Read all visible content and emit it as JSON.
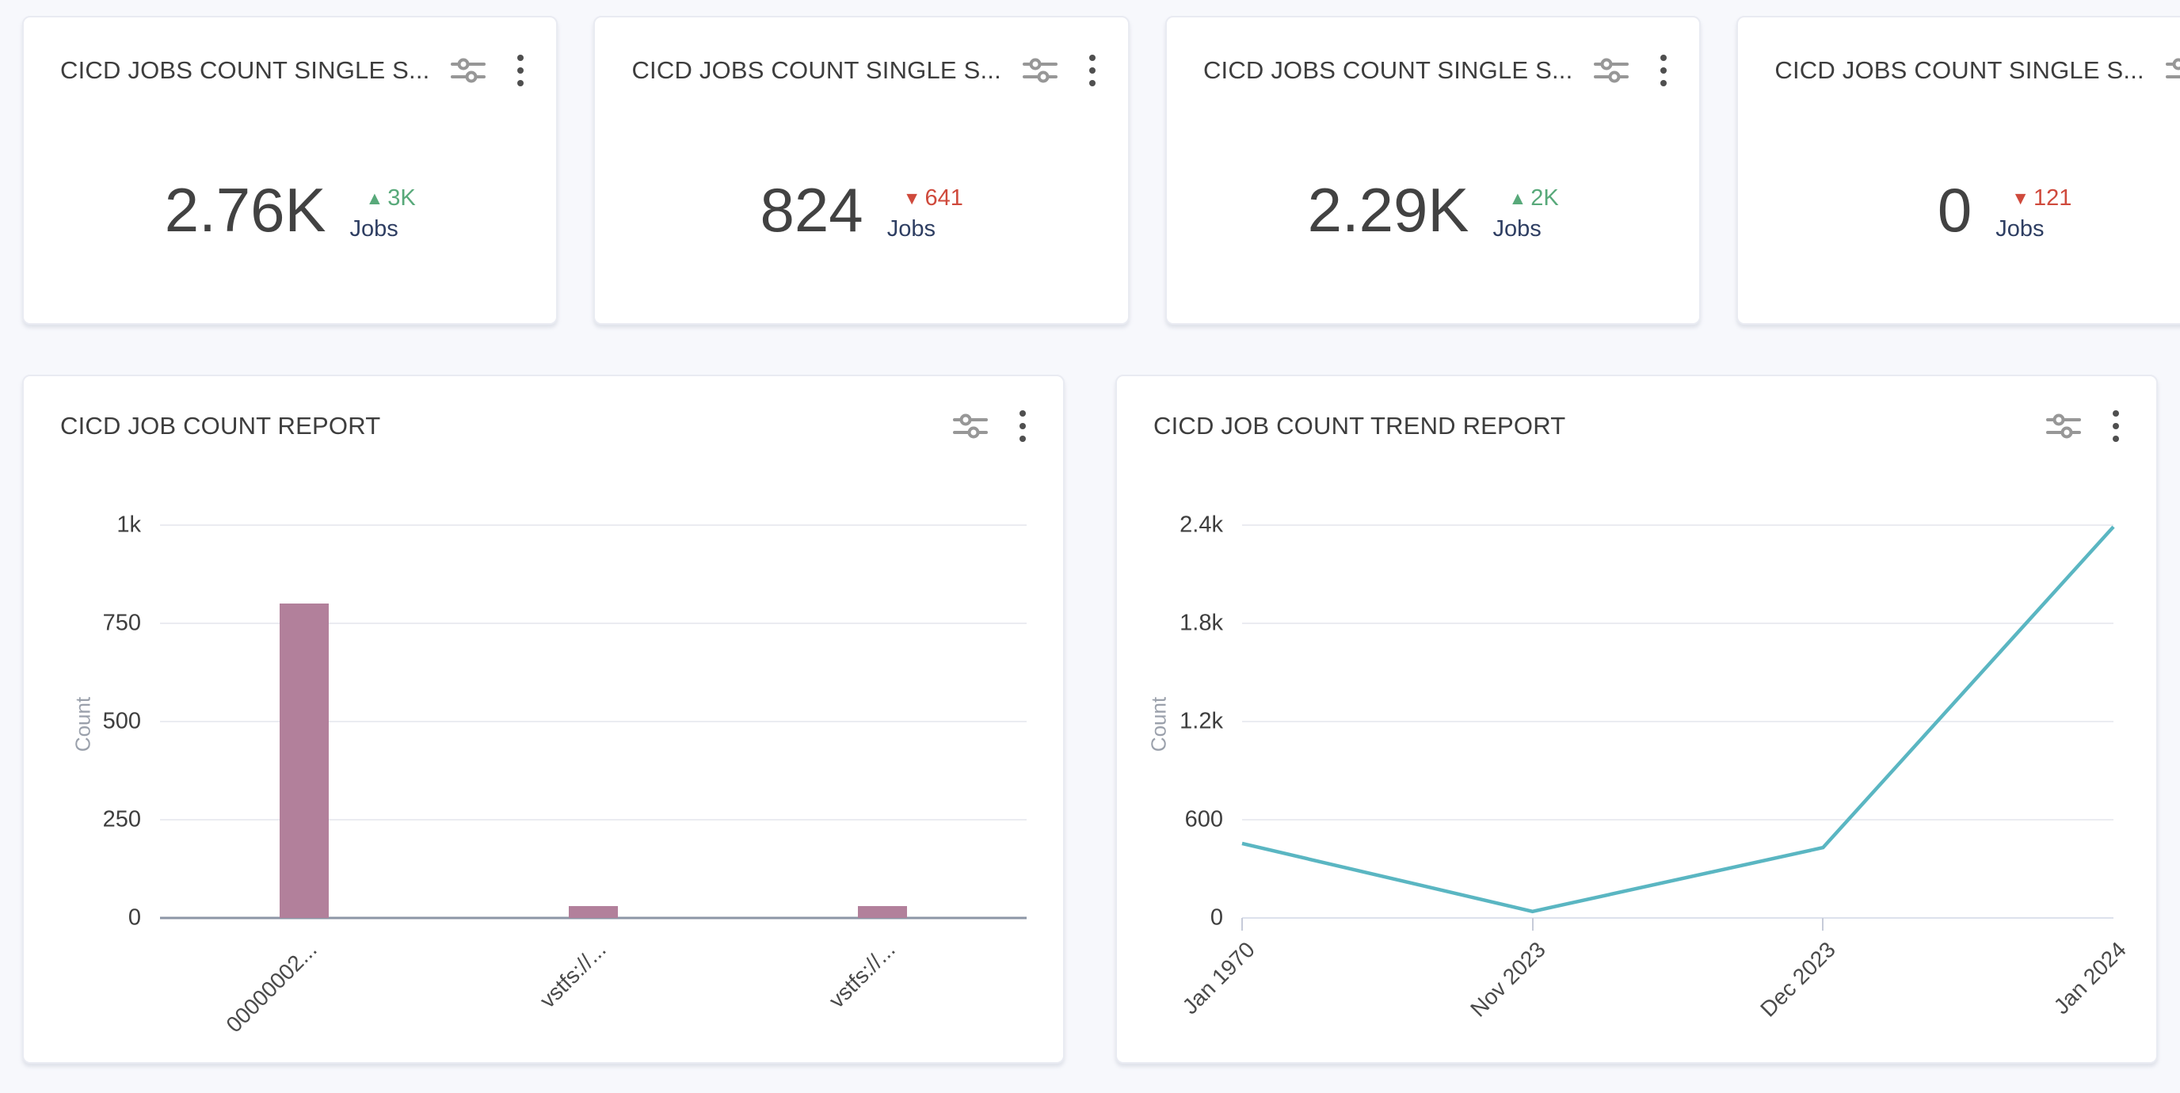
{
  "colors": {
    "background": "#f7f8fc",
    "card_background": "#ffffff",
    "trend_up": "#58a97a",
    "trend_down": "#cf4a3c",
    "unit_text": "#2e3e62",
    "bar": "#b2809b",
    "line": "#5ab6c2"
  },
  "icons": {
    "header_filter": "tune-sliders-icon",
    "header_menu": "kebab-vertical-icon",
    "up_triangle": "▲",
    "down_triangle": "▼"
  },
  "stat_cards": [
    {
      "title": "CICD JOBS COUNT SINGLE S...",
      "value": "2.76K",
      "trend": "up",
      "trend_icon": "▲",
      "delta": "3K",
      "unit": "Jobs"
    },
    {
      "title": "CICD JOBS COUNT SINGLE S...",
      "value": "824",
      "trend": "down",
      "trend_icon": "▼",
      "delta": "641",
      "unit": "Jobs"
    },
    {
      "title": "CICD JOBS COUNT SINGLE S...",
      "value": "2.29K",
      "trend": "up",
      "trend_icon": "▲",
      "delta": "2K",
      "unit": "Jobs"
    },
    {
      "title": "CICD JOBS COUNT SINGLE S...",
      "value": "0",
      "trend": "down",
      "trend_icon": "▼",
      "delta": "121",
      "unit": "Jobs"
    }
  ],
  "chart_data": [
    {
      "type": "bar",
      "title": "CICD JOB COUNT REPORT",
      "categories": [
        "00000002...",
        "vstfs://...",
        "vstfs://..."
      ],
      "values": [
        800,
        30,
        30
      ],
      "xlabel": "",
      "ylabel": "Count",
      "ylim": [
        0,
        1000
      ],
      "yticks": [
        0,
        250,
        500,
        750,
        1000
      ],
      "ytick_labels": [
        "0",
        "250",
        "500",
        "750",
        "1k"
      ],
      "grid": true,
      "bar_color": "#b2809b"
    },
    {
      "type": "line",
      "title": "CICD JOB COUNT TREND REPORT",
      "x": [
        "Jan 1970",
        "Nov 2023",
        "Dec 2023",
        "Jan 2024"
      ],
      "values": [
        455,
        40,
        430,
        2390
      ],
      "xlabel": "",
      "ylabel": "Count",
      "ylim": [
        0,
        2400
      ],
      "yticks": [
        0,
        600,
        1200,
        1800,
        2400
      ],
      "ytick_labels": [
        "0",
        "600",
        "1.2k",
        "1.8k",
        "2.4k"
      ],
      "grid": true,
      "line_color": "#5ab6c2"
    }
  ]
}
